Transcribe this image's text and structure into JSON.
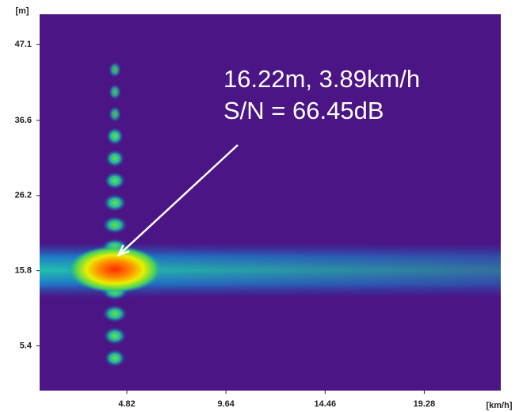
{
  "chart_data": {
    "type": "heatmap",
    "x_label": "[km/h]",
    "y_label": "[m]",
    "xlim": [
      0.58,
      23.0
    ],
    "ylim": [
      -0.8,
      51.3
    ],
    "xticks": [
      4.82,
      9.64,
      14.46,
      19.28
    ],
    "yticks": [
      5.4,
      15.8,
      26.2,
      36.6,
      47.1
    ],
    "annotation": {
      "lines": [
        "16.22m, 3.89km/h",
        "S/N = 66.45dB"
      ],
      "x": 3.89,
      "y": 16.22,
      "color": "#ffffff"
    }
  }
}
